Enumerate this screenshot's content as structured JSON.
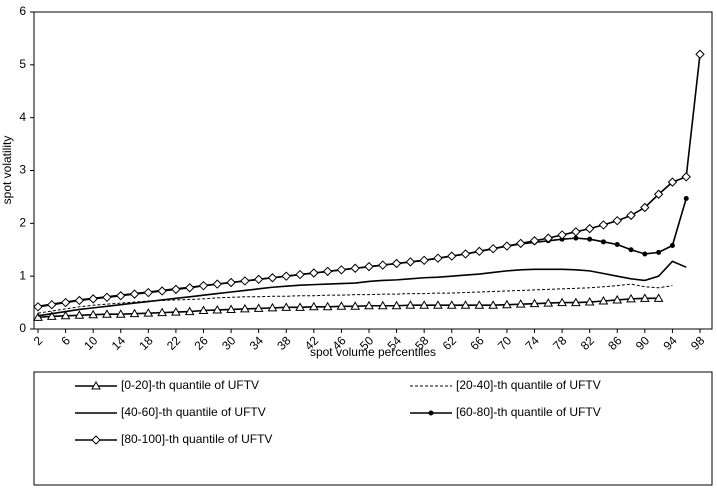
{
  "chart_data": {
    "type": "line",
    "xlabel": "spot volume percentiles",
    "ylabel": "spot volatility",
    "x": [
      2,
      4,
      6,
      8,
      10,
      12,
      14,
      16,
      18,
      20,
      22,
      24,
      26,
      28,
      30,
      32,
      34,
      36,
      38,
      40,
      42,
      44,
      46,
      48,
      50,
      52,
      54,
      56,
      58,
      60,
      62,
      64,
      66,
      68,
      70,
      72,
      74,
      76,
      78,
      80,
      82,
      84,
      86,
      88,
      90,
      92,
      94,
      96,
      98
    ],
    "xlim": [
      2,
      98
    ],
    "xticks": [
      2,
      6,
      10,
      14,
      18,
      22,
      26,
      30,
      34,
      38,
      42,
      46,
      50,
      54,
      58,
      62,
      66,
      70,
      74,
      78,
      82,
      86,
      90,
      94,
      98
    ],
    "ylim": [
      0,
      6
    ],
    "yticks": [
      0,
      1,
      2,
      3,
      4,
      5,
      6
    ],
    "legend": "bottom",
    "series": [
      {
        "name": "[0-20]-th quantile of UFTV",
        "color": "#000000",
        "marker": "triangle",
        "dash": "solid",
        "values": [
          0.22,
          0.24,
          0.25,
          0.26,
          0.27,
          0.28,
          0.28,
          0.29,
          0.3,
          0.31,
          0.32,
          0.33,
          0.35,
          0.36,
          0.37,
          0.38,
          0.39,
          0.4,
          0.41,
          0.41,
          0.42,
          0.42,
          0.43,
          0.43,
          0.44,
          0.44,
          0.44,
          0.45,
          0.45,
          0.45,
          0.45,
          0.45,
          0.45,
          0.45,
          0.46,
          0.47,
          0.48,
          0.49,
          0.5,
          0.5,
          0.51,
          0.53,
          0.55,
          0.57,
          0.58,
          0.58,
          null,
          null,
          null
        ]
      },
      {
        "name": "[20-40]-th quantile of UFTV",
        "color": "#000000",
        "marker": "none",
        "dash": "dashed",
        "values": [
          0.3,
          0.34,
          0.38,
          0.42,
          0.45,
          0.47,
          0.49,
          0.51,
          0.53,
          0.54,
          0.55,
          0.56,
          0.57,
          0.59,
          0.6,
          0.61,
          0.61,
          0.62,
          0.62,
          0.63,
          0.63,
          0.64,
          0.64,
          0.65,
          0.65,
          0.66,
          0.66,
          0.67,
          0.67,
          0.68,
          0.68,
          0.69,
          0.7,
          0.71,
          0.72,
          0.73,
          0.74,
          0.75,
          0.76,
          0.77,
          0.78,
          0.8,
          0.82,
          0.85,
          0.8,
          0.78,
          0.82,
          null,
          null
        ]
      },
      {
        "name": "[40-60]-th quantile of UFTV",
        "color": "#000000",
        "marker": "none",
        "dash": "solid",
        "values": [
          0.25,
          0.29,
          0.33,
          0.37,
          0.4,
          0.43,
          0.46,
          0.49,
          0.52,
          0.55,
          0.58,
          0.61,
          0.64,
          0.67,
          0.7,
          0.73,
          0.76,
          0.79,
          0.81,
          0.83,
          0.84,
          0.85,
          0.86,
          0.87,
          0.9,
          0.92,
          0.93,
          0.95,
          0.97,
          0.98,
          1.0,
          1.02,
          1.04,
          1.07,
          1.1,
          1.12,
          1.13,
          1.13,
          1.13,
          1.12,
          1.1,
          1.05,
          1.0,
          0.95,
          0.92,
          1.0,
          1.28,
          1.17,
          null
        ]
      },
      {
        "name": "[60-80]-th quantile of UFTV",
        "color": "#000000",
        "marker": "dot",
        "dash": "solid",
        "values": [
          0.43,
          0.47,
          0.51,
          0.55,
          0.58,
          0.61,
          0.64,
          0.67,
          0.7,
          0.73,
          0.76,
          0.79,
          0.82,
          0.85,
          0.88,
          0.91,
          0.94,
          0.97,
          1.0,
          1.03,
          1.06,
          1.09,
          1.12,
          1.15,
          1.18,
          1.21,
          1.24,
          1.27,
          1.3,
          1.34,
          1.38,
          1.42,
          1.47,
          1.52,
          1.57,
          1.61,
          1.64,
          1.67,
          1.7,
          1.72,
          1.7,
          1.65,
          1.6,
          1.5,
          1.42,
          1.45,
          1.58,
          2.47,
          null
        ]
      },
      {
        "name": "[80-100]-th quantile of UFTV",
        "color": "#000000",
        "marker": "diamond",
        "dash": "solid",
        "values": [
          0.42,
          0.46,
          0.5,
          0.54,
          0.57,
          0.6,
          0.63,
          0.66,
          0.69,
          0.72,
          0.75,
          0.78,
          0.82,
          0.85,
          0.88,
          0.91,
          0.94,
          0.97,
          1.0,
          1.03,
          1.06,
          1.09,
          1.12,
          1.15,
          1.18,
          1.21,
          1.24,
          1.27,
          1.3,
          1.34,
          1.38,
          1.42,
          1.47,
          1.52,
          1.57,
          1.62,
          1.67,
          1.72,
          1.78,
          1.84,
          1.9,
          1.97,
          2.05,
          2.15,
          2.3,
          2.55,
          2.78,
          2.88,
          5.2
        ]
      }
    ]
  }
}
